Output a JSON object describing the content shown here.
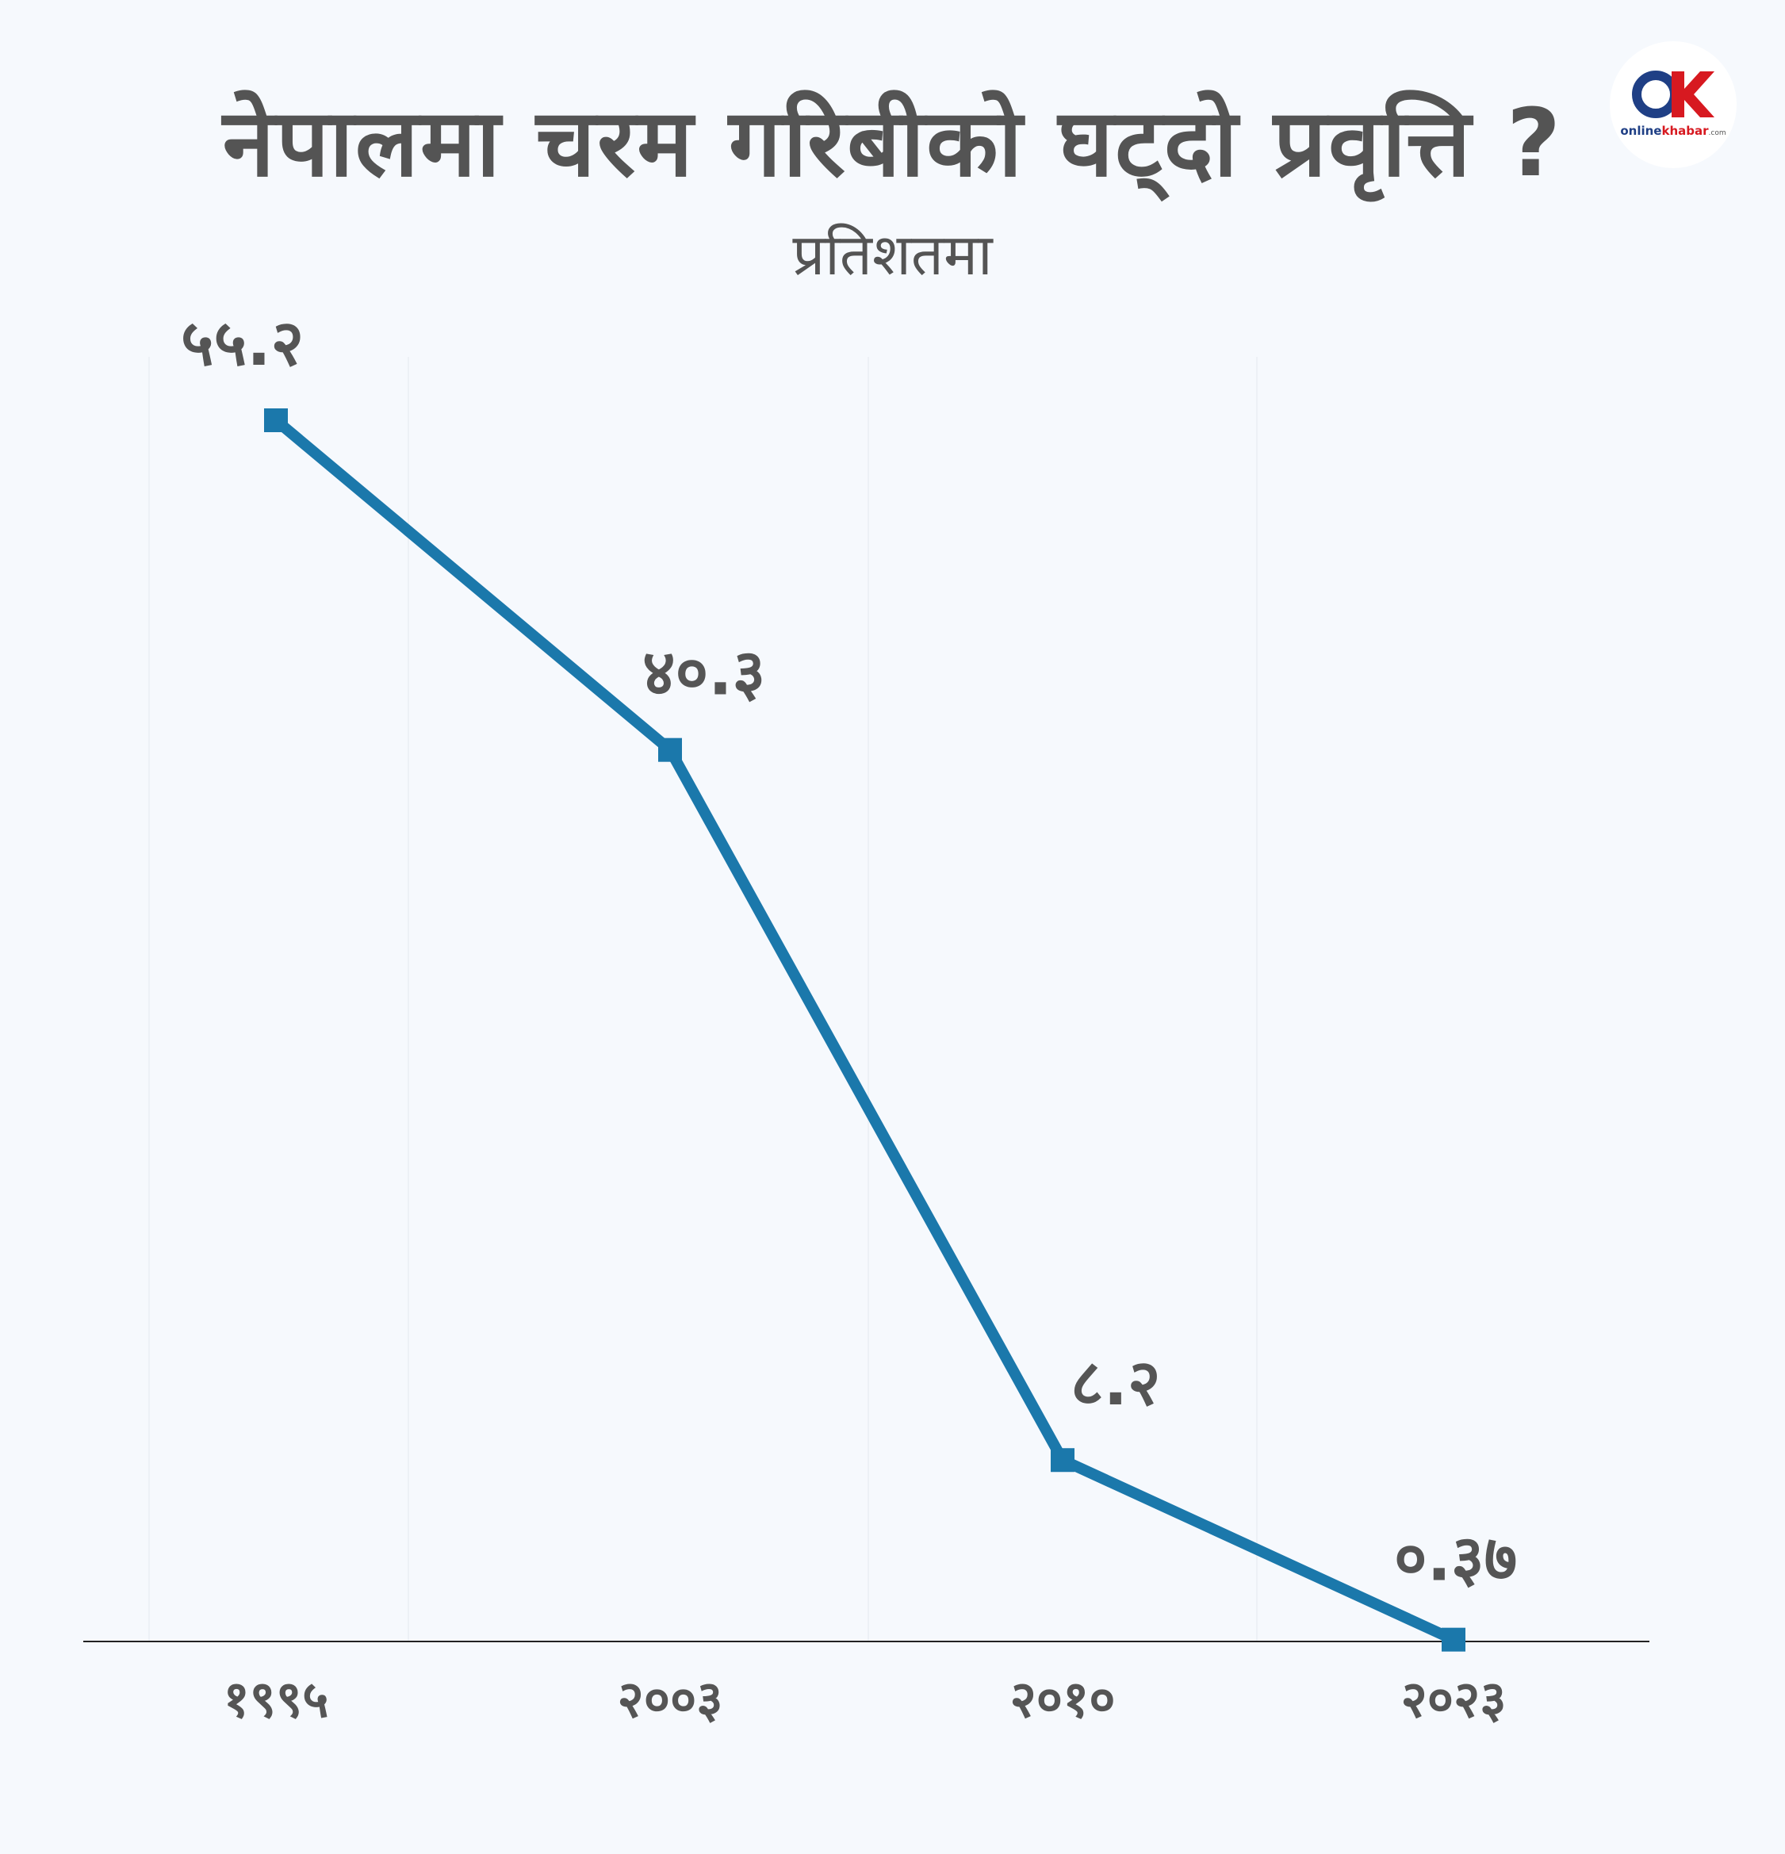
{
  "header": {
    "title": "नेपालमा चरम गरिबीको घट्दो प्रवृत्ति ?",
    "subtitle": "प्रतिशतमा"
  },
  "logo": {
    "brand_a": "online",
    "brand_b": "khabar",
    "brand_c": ".com",
    "colors": {
      "ring": "#1f3f85",
      "k": "#d71920"
    }
  },
  "chart_data": {
    "type": "line",
    "title": "नेपालमा चरम गरिबीको घट्दो प्रवृत्ति ?",
    "subtitle": "प्रतिशतमा",
    "categories": [
      "१९९५",
      "२००३",
      "२०१०",
      "२०२३"
    ],
    "x": [
      1995,
      2003,
      2010,
      2023
    ],
    "series": [
      {
        "values": [
          55.2,
          40.3,
          8.2,
          0.37
        ],
        "labels": [
          "५५.२",
          "४०.३",
          "८.२",
          "०.३७"
        ],
        "color": "#1b78ab"
      }
    ],
    "ylim": [
      0,
      60
    ],
    "grid": false,
    "legend": "none",
    "axis_color": "#222222"
  }
}
